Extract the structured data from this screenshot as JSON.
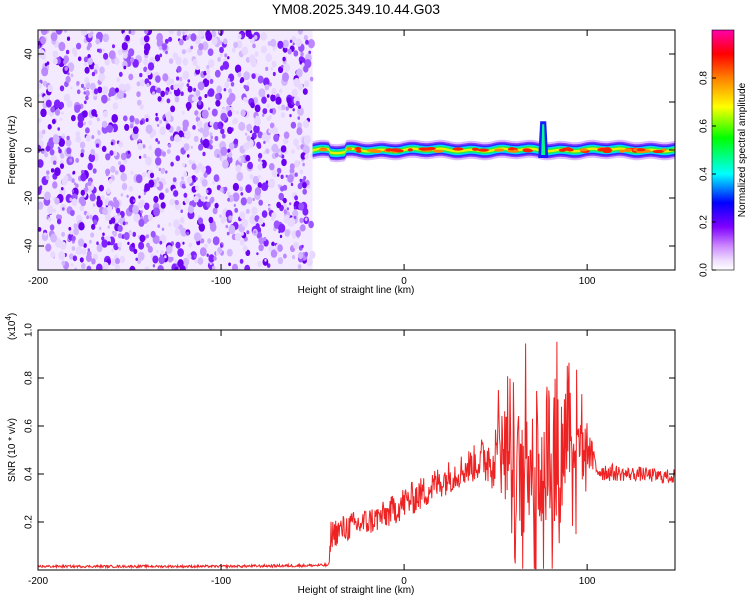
{
  "title": "YM08.2025.349.10.44.G03",
  "chart_data": [
    {
      "type": "heatmap",
      "xlabel": "Height of straight line (km)",
      "ylabel": "Frequency (Hz)",
      "xlim": [
        -200,
        148
      ],
      "ylim": [
        -50,
        50
      ],
      "xticks": [
        -200,
        -100,
        0,
        100
      ],
      "xtick_labels": [
        "-200",
        "-100",
        "0",
        "100"
      ],
      "yticks": [
        -40,
        -20,
        0,
        20,
        40
      ],
      "ytick_labels": [
        "-40",
        "-20",
        "0",
        "20",
        "40"
      ],
      "colorbar": {
        "label": "Normalized spectral amplitude",
        "range": [
          0,
          1
        ],
        "ticks": [
          0.0,
          0.2,
          0.4,
          0.6,
          0.8
        ],
        "tick_labels": [
          "0.0",
          "0.2",
          "0.4",
          "0.6",
          "0.8"
        ],
        "colors": [
          "#ffffff",
          "#cc88ff",
          "#7f00ff",
          "#0000ff",
          "#00ffff",
          "#00ff00",
          "#ffff00",
          "#ff8000",
          "#ff0000",
          "#ff00aa"
        ]
      },
      "features": {
        "noise_region_x": [
          -200,
          -50
        ],
        "noise_amplitude": [
          0.05,
          0.25
        ],
        "ridge_x": [
          -50,
          148
        ],
        "ridge_frequency_hz": 0,
        "ridge_peak_amplitude": 0.9,
        "spike_x": 76,
        "spike_frequency_max_hz": 12
      }
    },
    {
      "type": "line",
      "xlabel": "Height of straight line (km)",
      "ylabel": "SNR (10 * v/v)",
      "multiplier_label": "(x10",
      "multiplier_exp": "4",
      "multiplier_close": ")",
      "xlim": [
        -200,
        148
      ],
      "ylim": [
        0.0,
        1.0
      ],
      "xticks": [
        -200,
        -100,
        0,
        100
      ],
      "xtick_labels": [
        "-200",
        "-100",
        "0",
        "100"
      ],
      "yticks": [
        0.2,
        0.4,
        0.6,
        0.8,
        1.0
      ],
      "ytick_labels": [
        "0.2",
        "0.4",
        "0.6",
        "0.8",
        "1.0"
      ],
      "color": "#ee2222",
      "series": [
        {
          "x": [
            -200,
            -150,
            -100,
            -60,
            -41,
            -40,
            -30,
            -20,
            -10,
            0,
            10,
            20,
            30,
            40,
            50,
            55,
            60,
            65,
            70,
            75,
            80,
            85,
            90,
            95,
            100,
            105,
            110,
            120,
            130,
            140,
            148
          ],
          "values": [
            0.015,
            0.015,
            0.015,
            0.018,
            0.02,
            0.15,
            0.18,
            0.2,
            0.23,
            0.28,
            0.32,
            0.37,
            0.41,
            0.45,
            0.48,
            0.5,
            0.3,
            0.45,
            0.5,
            0.42,
            0.55,
            0.4,
            0.7,
            0.45,
            0.52,
            0.42,
            0.41,
            0.4,
            0.4,
            0.39,
            0.39
          ],
          "noise_amplitude": [
            0.005,
            0.005,
            0.005,
            0.006,
            0.006,
            0.06,
            0.06,
            0.06,
            0.06,
            0.07,
            0.07,
            0.07,
            0.07,
            0.08,
            0.15,
            0.2,
            0.3,
            0.3,
            0.3,
            0.3,
            0.35,
            0.3,
            0.3,
            0.2,
            0.1,
            0.05,
            0.04,
            0.03,
            0.03,
            0.03,
            0.03
          ]
        }
      ]
    }
  ]
}
